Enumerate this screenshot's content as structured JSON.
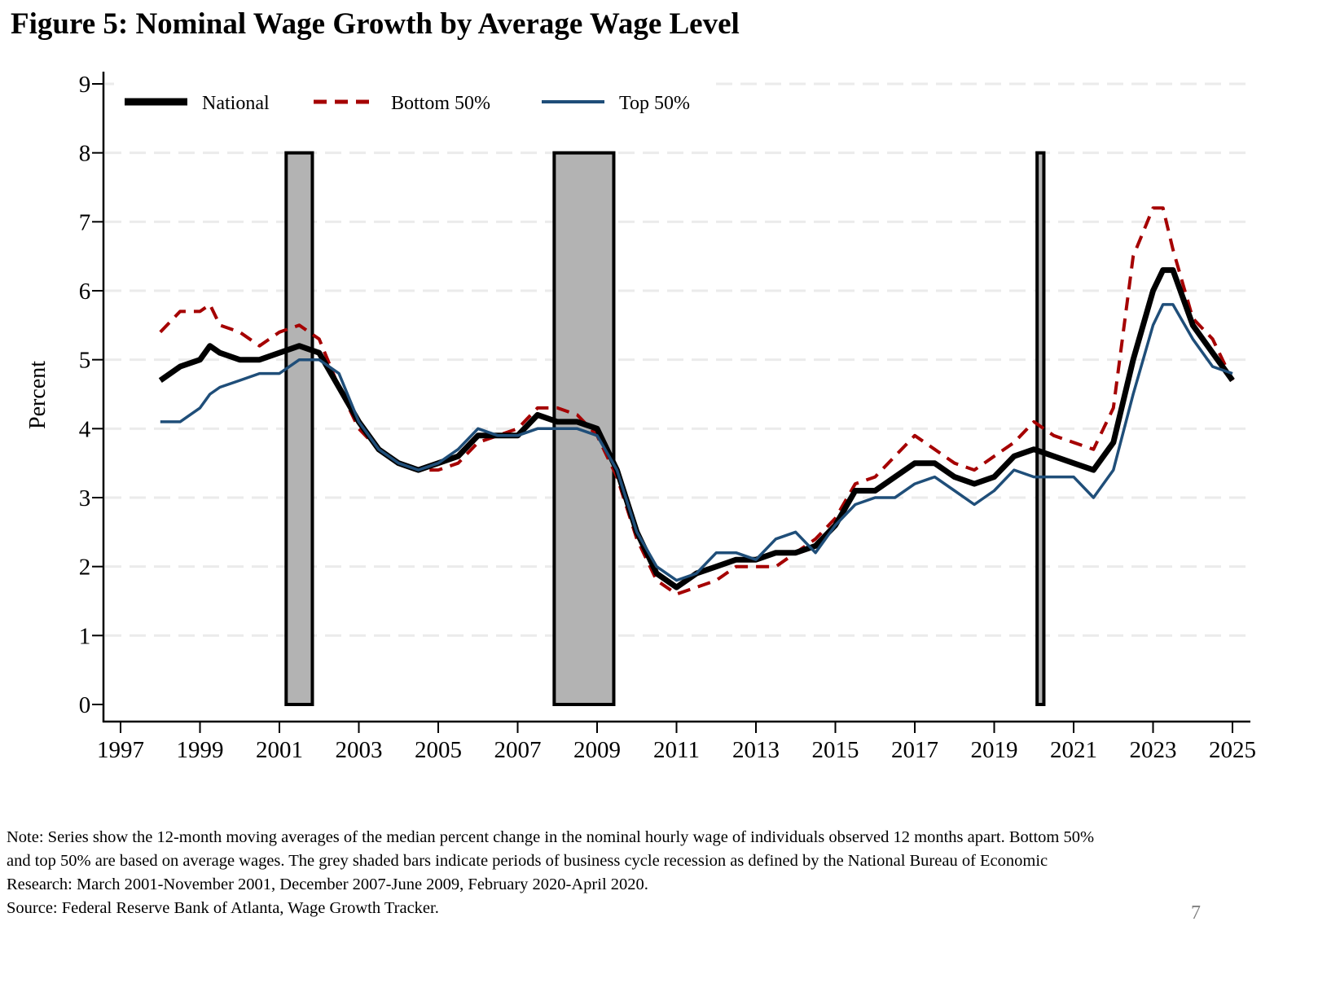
{
  "title": "Figure 5: Nominal Wage Growth by Average Wage Level",
  "notes": [
    "Note: Series show the 12-month moving averages of the median percent change in the nominal hourly wage of individuals observed 12 months apart. Bottom 50%",
    "and top 50% are based on average wages. The grey shaded bars indicate periods of business cycle recession as defined by the National Bureau of Economic",
    "Research: March 2001-November 2001, December 2007-June 2009, February 2020-April 2020.",
    "Source: Federal Reserve Bank of Atlanta, Wage Growth Tracker."
  ],
  "page_number": "7",
  "colors": {
    "national": "#000000",
    "bottom50": "#a50000",
    "top50": "#1f4e79",
    "recession": "#b3b3b3",
    "grid": "#ebebeb"
  },
  "chart_data": {
    "type": "line",
    "title": "Figure 5: Nominal Wage Growth by Average Wage Level",
    "xlabel": "",
    "ylabel": "Percent",
    "xlim": [
      1997,
      2025
    ],
    "ylim": [
      0,
      9
    ],
    "x_ticks": [
      "1997",
      "1999",
      "2001",
      "2003",
      "2005",
      "2007",
      "2009",
      "2011",
      "2013",
      "2015",
      "2017",
      "2019",
      "2021",
      "2023",
      "2025"
    ],
    "y_ticks": [
      "0",
      "1",
      "2",
      "3",
      "4",
      "5",
      "6",
      "7",
      "8",
      "9"
    ],
    "grid": true,
    "legend_position": "top-left",
    "recessions": [
      {
        "label": "March 2001-November 2001",
        "start": 2001.17,
        "end": 2001.83
      },
      {
        "label": "December 2007-June 2009",
        "start": 2007.92,
        "end": 2009.42
      },
      {
        "label": "February 2020-April 2020",
        "start": 2020.08,
        "end": 2020.25
      }
    ],
    "x": [
      1998.0,
      1998.5,
      1999.0,
      1999.25,
      1999.5,
      2000.0,
      2000.5,
      2001.0,
      2001.5,
      2002.0,
      2002.5,
      2003.0,
      2003.5,
      2004.0,
      2004.5,
      2005.0,
      2005.5,
      2006.0,
      2006.5,
      2007.0,
      2007.5,
      2008.0,
      2008.5,
      2009.0,
      2009.5,
      2010.0,
      2010.5,
      2011.0,
      2011.5,
      2012.0,
      2012.5,
      2013.0,
      2013.5,
      2014.0,
      2014.5,
      2015.0,
      2015.5,
      2016.0,
      2016.5,
      2017.0,
      2017.5,
      2018.0,
      2018.5,
      2019.0,
      2019.5,
      2020.0,
      2020.5,
      2021.0,
      2021.5,
      2022.0,
      2022.5,
      2023.0,
      2023.25,
      2023.5,
      2024.0,
      2024.5,
      2025.0
    ],
    "series": [
      {
        "name": "National",
        "style": "solid-thick",
        "values": [
          4.7,
          4.9,
          5.0,
          5.2,
          5.1,
          5.0,
          5.0,
          5.1,
          5.2,
          5.1,
          4.6,
          4.1,
          3.7,
          3.5,
          3.4,
          3.5,
          3.6,
          3.9,
          3.9,
          3.9,
          4.2,
          4.1,
          4.1,
          4.0,
          3.4,
          2.5,
          1.9,
          1.7,
          1.9,
          2.0,
          2.1,
          2.1,
          2.2,
          2.2,
          2.3,
          2.6,
          3.1,
          3.1,
          3.3,
          3.5,
          3.5,
          3.3,
          3.2,
          3.3,
          3.6,
          3.7,
          3.6,
          3.5,
          3.4,
          3.8,
          5.0,
          6.0,
          6.3,
          6.3,
          5.5,
          5.1,
          4.7
        ]
      },
      {
        "name": "Bottom 50%",
        "style": "dashed",
        "values": [
          5.4,
          5.7,
          5.7,
          5.8,
          5.5,
          5.4,
          5.2,
          5.4,
          5.5,
          5.3,
          4.6,
          4.0,
          3.7,
          3.5,
          3.4,
          3.4,
          3.5,
          3.8,
          3.9,
          4.0,
          4.3,
          4.3,
          4.2,
          3.9,
          3.3,
          2.4,
          1.8,
          1.6,
          1.7,
          1.8,
          2.0,
          2.0,
          2.0,
          2.2,
          2.4,
          2.7,
          3.2,
          3.3,
          3.6,
          3.9,
          3.7,
          3.5,
          3.4,
          3.6,
          3.8,
          4.1,
          3.9,
          3.8,
          3.7,
          4.3,
          6.5,
          7.2,
          7.2,
          6.6,
          5.6,
          5.3,
          4.7
        ]
      },
      {
        "name": "Top 50%",
        "style": "solid",
        "values": [
          4.1,
          4.1,
          4.3,
          4.5,
          4.6,
          4.7,
          4.8,
          4.8,
          5.0,
          5.0,
          4.8,
          4.1,
          3.7,
          3.5,
          3.4,
          3.5,
          3.7,
          4.0,
          3.9,
          3.9,
          4.0,
          4.0,
          4.0,
          3.9,
          3.4,
          2.5,
          2.0,
          1.8,
          1.9,
          2.2,
          2.2,
          2.1,
          2.4,
          2.5,
          2.2,
          2.6,
          2.9,
          3.0,
          3.0,
          3.2,
          3.3,
          3.1,
          2.9,
          3.1,
          3.4,
          3.3,
          3.3,
          3.3,
          3.0,
          3.4,
          4.5,
          5.5,
          5.8,
          5.8,
          5.3,
          4.9,
          4.8
        ]
      }
    ]
  }
}
